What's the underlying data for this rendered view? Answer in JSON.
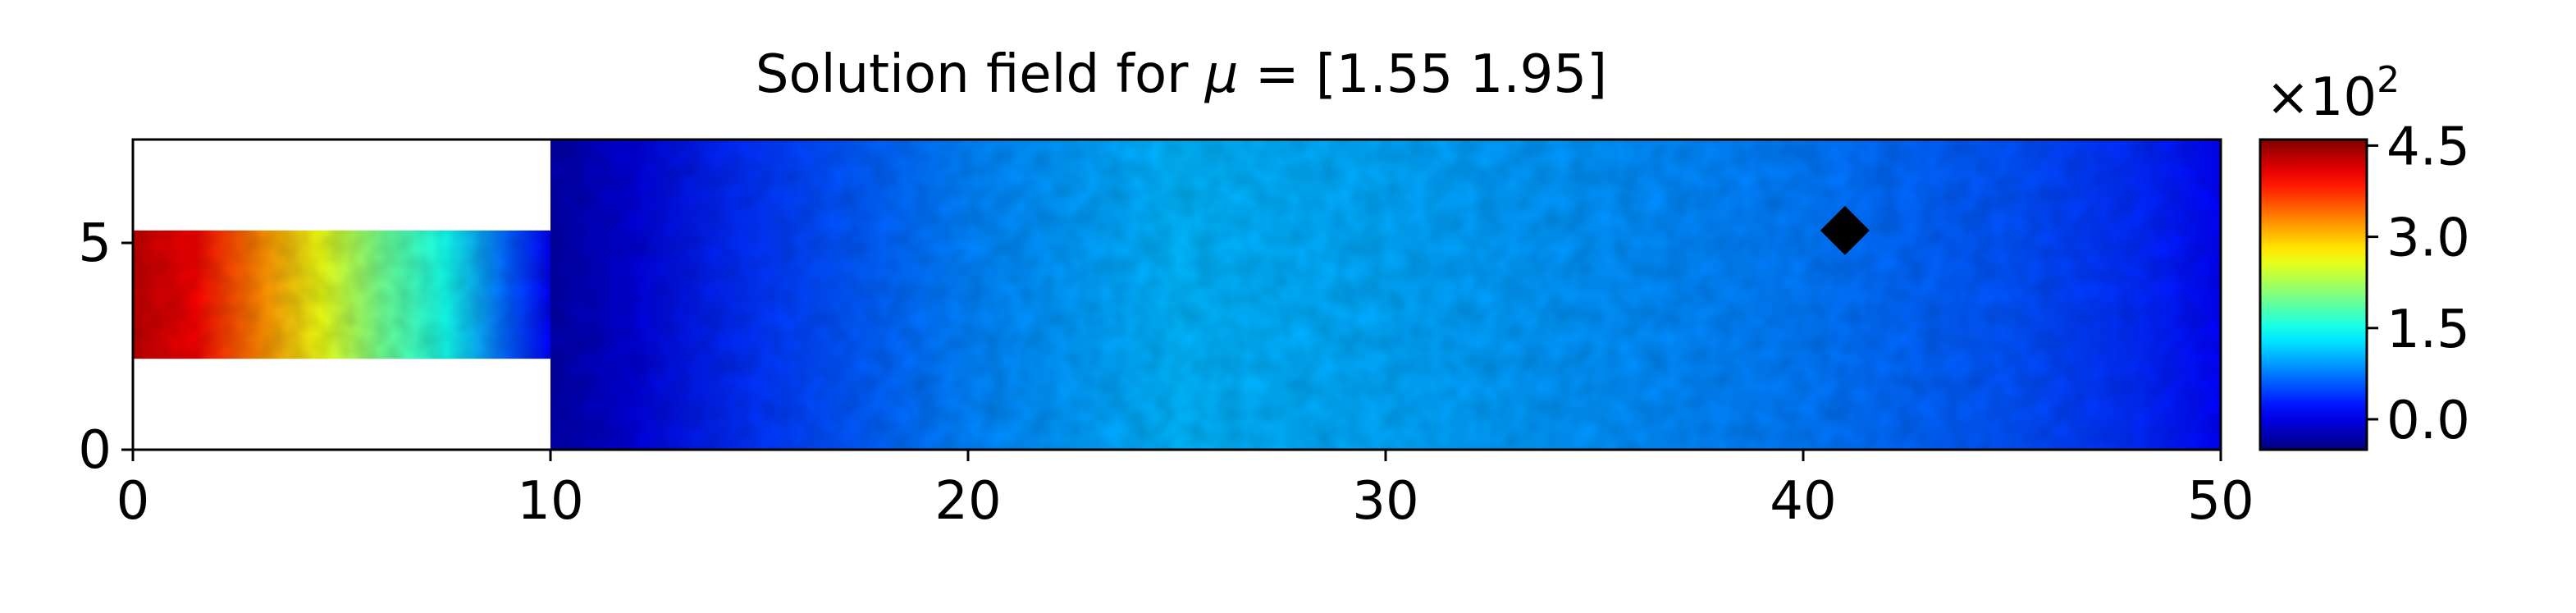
{
  "chart_data": {
    "type": "heatmap",
    "title_prefix": "Solution field for ",
    "title_symbol": "μ",
    "title_suffix": " = [1.55 1.95]",
    "xlim": [
      0,
      50
    ],
    "ylim": [
      0,
      7.5
    ],
    "x_ticks": [
      {
        "value": 0,
        "label": "0"
      },
      {
        "value": 10,
        "label": "10"
      },
      {
        "value": 20,
        "label": "20"
      },
      {
        "value": 30,
        "label": "30"
      },
      {
        "value": 40,
        "label": "40"
      },
      {
        "value": 50,
        "label": "50"
      }
    ],
    "y_ticks": [
      {
        "value": 0,
        "label": "0"
      },
      {
        "value": 5,
        "label": "5"
      }
    ],
    "domain": {
      "inlet_channel": {
        "x": [
          0,
          10
        ],
        "y": [
          2.2,
          5.3
        ]
      },
      "main_chamber": {
        "x": [
          10,
          50
        ],
        "y": [
          0,
          7.5
        ]
      }
    },
    "field_profile": {
      "inlet_channel": [
        {
          "x": 0,
          "value": 430
        },
        {
          "x": 1.5,
          "value": 400
        },
        {
          "x": 3,
          "value": 330
        },
        {
          "x": 4.5,
          "value": 260
        },
        {
          "x": 6,
          "value": 195
        },
        {
          "x": 7.5,
          "value": 150
        },
        {
          "x": 9,
          "value": 60
        },
        {
          "x": 10,
          "value": 10
        }
      ],
      "main_chamber": [
        {
          "x": 10,
          "value": -30
        },
        {
          "x": 12,
          "value": -5
        },
        {
          "x": 15,
          "value": 40
        },
        {
          "x": 20,
          "value": 80
        },
        {
          "x": 25,
          "value": 105
        },
        {
          "x": 30,
          "value": 98
        },
        {
          "x": 35,
          "value": 88
        },
        {
          "x": 40,
          "value": 75
        },
        {
          "x": 45,
          "value": 55
        },
        {
          "x": 48,
          "value": 35
        },
        {
          "x": 50,
          "value": 15
        }
      ]
    },
    "marker": {
      "x": 41,
      "y": 5.3,
      "shape": "diamond",
      "color": "#000000"
    },
    "colorbar": {
      "colormap": "jet",
      "range": [
        -50,
        460
      ],
      "ticks": [
        {
          "value": 0,
          "label": "0.0"
        },
        {
          "value": 150,
          "label": "1.5"
        },
        {
          "value": 300,
          "label": "3.0"
        },
        {
          "value": 450,
          "label": "4.5"
        }
      ],
      "multiplier_base": "×10",
      "multiplier_exp": "2"
    }
  }
}
